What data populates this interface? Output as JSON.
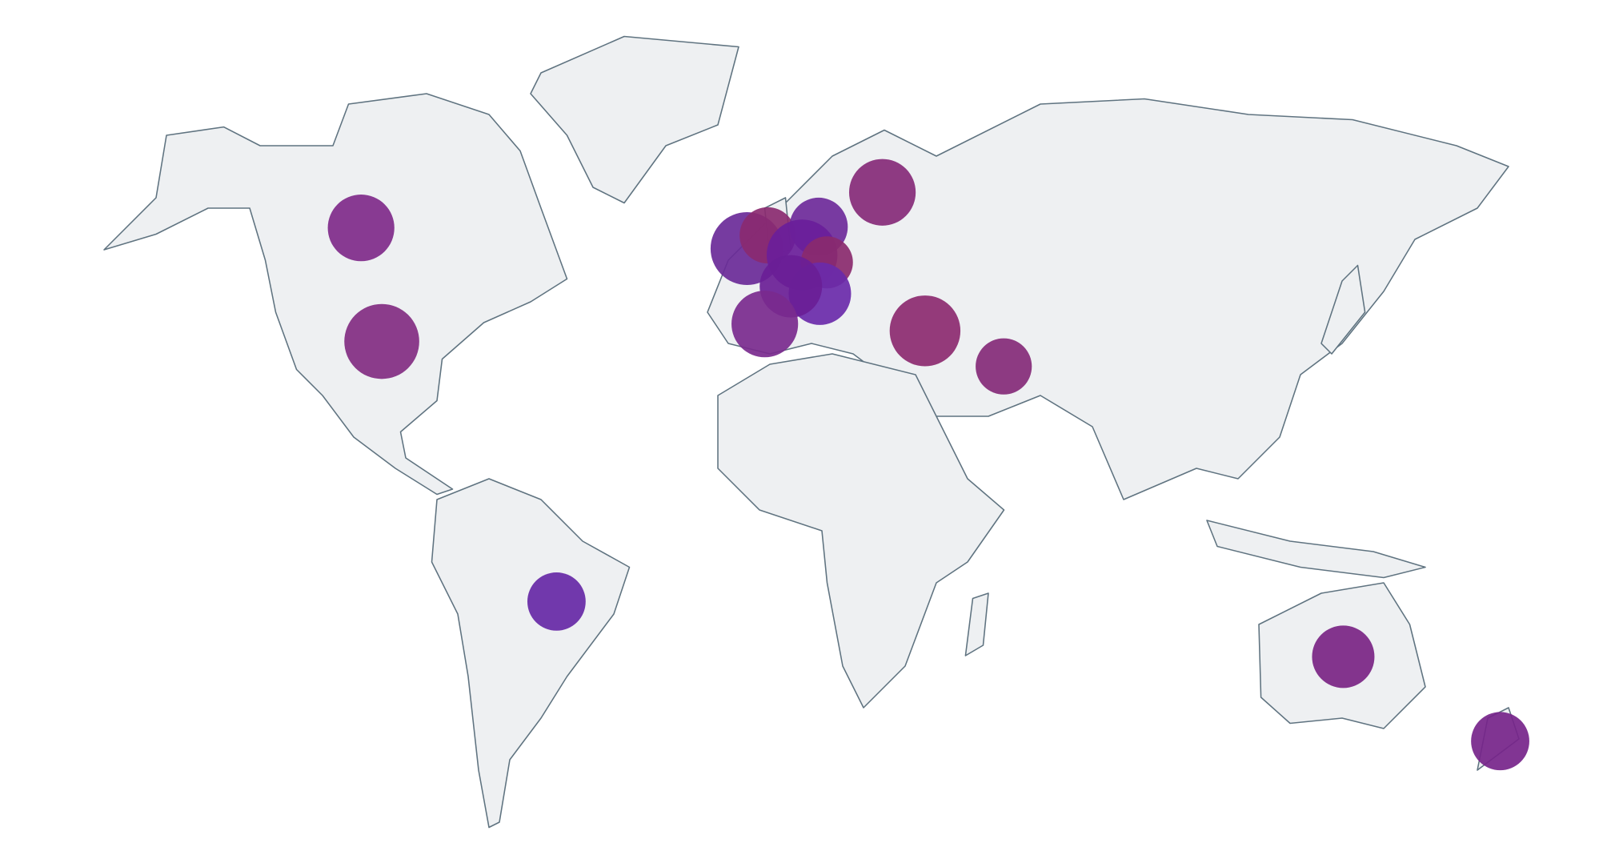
{
  "chart_data": {
    "type": "bubble-map",
    "x": [
      -103.0,
      -98.0,
      -55.8,
      -9.8,
      -4.8,
      7.5,
      22.9,
      3.5,
      9.5,
      7.8,
      0.8,
      -5.5,
      33.2,
      52.2,
      134.2,
      172.1
    ],
    "values": [
      60.4,
      39.0,
      -10.0,
      56.5,
      59.0,
      60.6,
      67.1,
      55.3,
      53.9,
      48.0,
      49.4,
      42.3,
      41.0,
      34.3,
      -20.4,
      -36.3
    ],
    "sizes": [
      32,
      36,
      28,
      35,
      27,
      28,
      32,
      34,
      25,
      30,
      30,
      32,
      34,
      27,
      30,
      28
    ],
    "colors": [
      "#7f2a8a",
      "#822c82",
      "#6628a6",
      "#6a2a98",
      "#8a2a70",
      "#6e2a9a",
      "#862a78",
      "#6a1e9a",
      "#8a2a6e",
      "#6a2aaa",
      "#6a1e96",
      "#7a2a8e",
      "#8c2a70",
      "#842a78",
      "#7a2484",
      "#76248a"
    ]
  }
}
